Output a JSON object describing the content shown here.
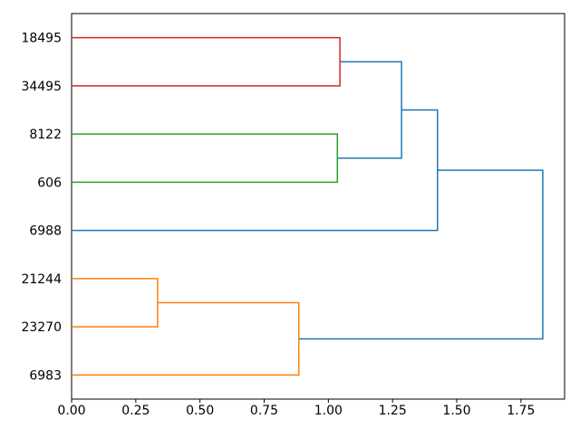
{
  "figure": {
    "background": "#ffffff"
  },
  "chart_data": {
    "type": "dendrogram",
    "library_style": "matplotlib-scipy",
    "orientation": "left",
    "title": "",
    "xlabel": "",
    "ylabel": "",
    "xlim": [
      0,
      1.92
    ],
    "ylim": [
      0,
      80
    ],
    "grid": false,
    "x_ticks": [
      "0.00",
      "0.25",
      "0.50",
      "0.75",
      "1.00",
      "1.25",
      "1.50",
      "1.75"
    ],
    "x_tick_values": [
      0,
      0.25,
      0.5,
      0.75,
      1.0,
      1.25,
      1.5,
      1.75
    ],
    "categories": [
      "18495",
      "34495",
      "8122",
      "606",
      "6988",
      "21244",
      "23270",
      "6983"
    ],
    "leaves": [
      {
        "label": "18495",
        "y": 75
      },
      {
        "label": "34495",
        "y": 65
      },
      {
        "label": "8122",
        "y": 55
      },
      {
        "label": "606",
        "y": 45
      },
      {
        "label": "6988",
        "y": 35
      },
      {
        "label": "21244",
        "y": 25
      },
      {
        "label": "23270",
        "y": 15
      },
      {
        "label": "6983",
        "y": 5
      }
    ],
    "links": [
      {
        "color": "#d62728",
        "yA": 75,
        "hA": 0,
        "yB": 65,
        "hB": 0,
        "h": 1.045,
        "members": [
          "18495",
          "34495"
        ]
      },
      {
        "color": "#2ca02c",
        "yA": 55,
        "hA": 0,
        "yB": 45,
        "hB": 0,
        "h": 1.035,
        "members": [
          "8122",
          "606"
        ]
      },
      {
        "color": "#1f77b4",
        "yA": 70,
        "hA": 1.045,
        "yB": 50,
        "hB": 1.035,
        "h": 1.285,
        "members": [
          "18495+34495",
          "8122+606"
        ]
      },
      {
        "color": "#1f77b4",
        "yA": 60,
        "hA": 1.285,
        "yB": 35,
        "hB": 0,
        "h": 1.425,
        "members": [
          "18495+34495+8122+606",
          "6988"
        ]
      },
      {
        "color": "#ff7f0e",
        "yA": 25,
        "hA": 0,
        "yB": 15,
        "hB": 0,
        "h": 0.335,
        "members": [
          "21244",
          "23270"
        ]
      },
      {
        "color": "#ff7f0e",
        "yA": 20,
        "hA": 0.335,
        "yB": 5,
        "hB": 0,
        "h": 0.885,
        "members": [
          "21244+23270",
          "6983"
        ]
      },
      {
        "color": "#1f77b4",
        "yA": 47.5,
        "hA": 1.425,
        "yB": 12.5,
        "hB": 0.885,
        "h": 1.835,
        "members": [
          "upper-cluster",
          "lower-cluster"
        ]
      }
    ],
    "colors": {
      "above_threshold_link": "#1f77b4",
      "cluster_red": "#d62728",
      "cluster_green": "#2ca02c",
      "cluster_orange": "#ff7f0e",
      "axis": "#000000",
      "background": "#ffffff"
    }
  }
}
